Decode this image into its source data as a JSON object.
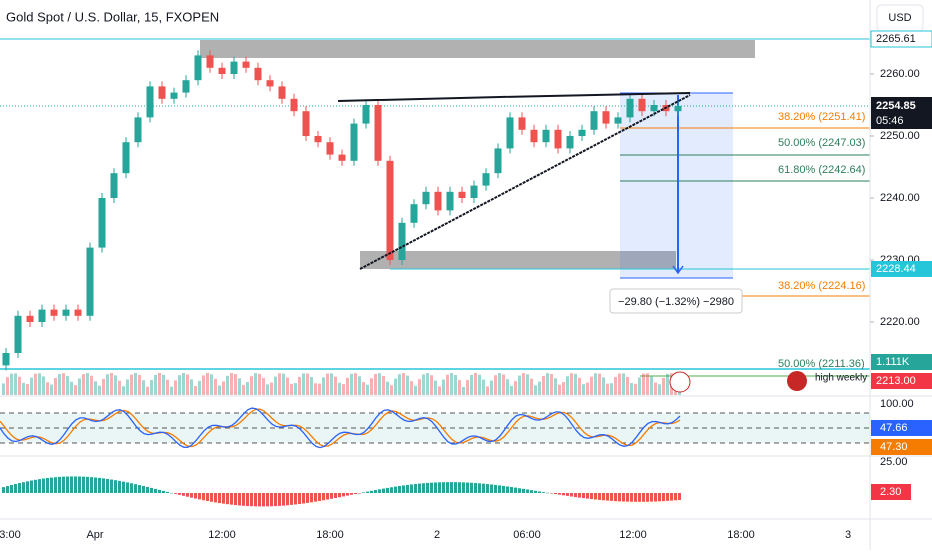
{
  "header": {
    "title": "Gold Spot / U.S. Dollar, 15, FXOPEN",
    "currency": "USD"
  },
  "price_axis": {
    "ticks": [
      {
        "value": 2260,
        "label": "2260.00"
      },
      {
        "value": 2250,
        "label": "2250.00"
      },
      {
        "value": 2240,
        "label": "2240.00"
      },
      {
        "value": 2230,
        "label": "2230.00"
      },
      {
        "value": 2220,
        "label": "2220.00"
      }
    ]
  },
  "time_axis": {
    "labels": [
      "3:00",
      "Apr",
      "12:00",
      "18:00",
      "2",
      "06:00",
      "12:00",
      "18:00",
      "3"
    ]
  },
  "candles": {
    "first_open": 2213,
    "closes": [
      2215,
      2221,
      2220,
      2222,
      2221,
      2222,
      2221,
      2232,
      2240,
      2244,
      2249,
      2253,
      2258,
      2256,
      2257,
      2259,
      2263,
      2261,
      2260,
      2262,
      2261,
      2259,
      2258,
      2256,
      2254,
      2250,
      2249,
      2247,
      2246,
      2252,
      2255,
      2246,
      2230,
      2236,
      2239,
      2241,
      2238,
      2241,
      2240,
      2242,
      2244,
      2248,
      2253,
      2251,
      2249,
      2251,
      2248,
      2250,
      2251,
      2254,
      2252,
      2253,
      2256,
      2254,
      2255,
      2254,
      2254.85
    ]
  },
  "price_labels": {
    "resistance": "2265.61",
    "last": "2254.85",
    "countdown": "05:46",
    "support": "2228.44",
    "volume": "1.111K",
    "weekly": "2213.00"
  },
  "fib_labels": [
    "38.20% (2251.41)",
    "50.00% (2247.03)",
    "61.80% (2242.64)",
    "38.20% (2224.16)",
    "50.00% (2211.36)"
  ],
  "measure": "−29.80 (−1.32%) −2980",
  "annotation": "high weekly",
  "oscillator": {
    "top": "100.00",
    "k": "47.66",
    "d": "47.30",
    "bottom": "25.00"
  },
  "macd": {
    "value": "2.30"
  }
}
